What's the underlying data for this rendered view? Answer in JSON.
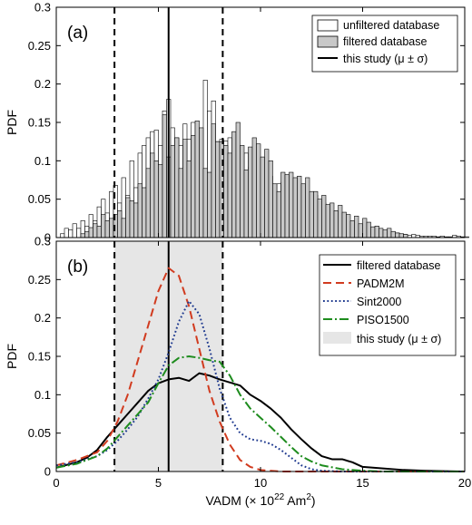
{
  "figure": {
    "xlabel_main": "VADM (× 10",
    "xlabel_exp": "22",
    "xlabel_unit": " Am",
    "xlabel_unit_exp": "2",
    "xlabel_close": ")"
  },
  "chart_data": [
    {
      "type": "bar",
      "panel_label": "(a)",
      "ylabel": "PDF",
      "xlim": [
        0,
        20
      ],
      "ylim": [
        0,
        0.3
      ],
      "x_ticks": [
        "0",
        "5",
        "10",
        "15",
        "20"
      ],
      "y_ticks": [
        "0",
        "0.05",
        "0.1",
        "0.15",
        "0.2",
        "0.25",
        "0.3"
      ],
      "bin_width": 0.2,
      "legend_position": "top-right",
      "legend": [
        "unfiltered database",
        "filtered database",
        "this study (μ ± σ)"
      ],
      "mean": 5.5,
      "sigma_low": 2.85,
      "sigma_high": 8.15,
      "series": [
        {
          "name": "unfiltered database",
          "color": "#ffffff",
          "x_start": 0.2,
          "values": [
            0.005,
            0.012,
            0.01,
            0.018,
            0.012,
            0.022,
            0.015,
            0.03,
            0.022,
            0.04,
            0.05,
            0.032,
            0.06,
            0.068,
            0.045,
            0.078,
            0.055,
            0.1,
            0.065,
            0.11,
            0.12,
            0.13,
            0.138,
            0.14,
            0.12,
            0.165,
            0.18,
            0.143,
            0.13,
            0.12,
            0.148,
            0.128,
            0.15,
            0.133,
            0.12,
            0.205,
            0.165,
            0.178,
            0.125,
            0.128,
            0.126,
            0.13,
            0.105,
            0.098,
            0.09,
            0.11,
            0.092,
            0.11,
            0.095,
            0.088,
            0.092,
            0.08,
            0.068,
            0.07,
            0.072,
            0.065,
            0.058,
            0.07,
            0.045,
            0.04,
            0.042,
            0.045,
            0.055,
            0.035,
            0.045,
            0.028,
            0.022,
            0.032,
            0.026,
            0.02,
            0.018,
            0.014,
            0.012,
            0.014,
            0.01,
            0.012,
            0.008,
            0.012,
            0.006,
            0.008,
            0.005,
            0.004,
            0.006,
            0.005,
            0.004,
            0.003,
            0.004,
            0.003,
            0.002,
            0.002,
            0.002,
            0.002,
            0.001,
            0.002,
            0.001,
            0.001,
            0.003,
            0.002,
            0.001,
            0.001
          ]
        },
        {
          "name": "filtered database",
          "color": "#c8c8c8",
          "x_start": 1.2,
          "values": [
            0.005,
            0.008,
            0.013,
            0.018,
            0.015,
            0.03,
            0.022,
            0.025,
            0.03,
            0.035,
            0.025,
            0.052,
            0.048,
            0.045,
            0.07,
            0.065,
            0.09,
            0.11,
            0.1,
            0.095,
            0.16,
            0.105,
            0.12,
            0.13,
            0.09,
            0.128,
            0.1,
            0.133,
            0.152,
            0.143,
            0.09,
            0.085,
            0.148,
            0.125,
            0.125,
            0.12,
            0.11,
            0.138,
            0.15,
            0.12,
            0.088,
            0.118,
            0.13,
            0.122,
            0.105,
            0.115,
            0.1,
            0.07,
            0.06,
            0.085,
            0.082,
            0.085,
            0.078,
            0.08,
            0.07,
            0.078,
            0.06,
            0.06,
            0.05,
            0.055,
            0.043,
            0.045,
            0.035,
            0.042,
            0.033,
            0.03,
            0.022,
            0.028,
            0.018,
            0.025,
            0.02,
            0.014,
            0.015,
            0.012,
            0.01,
            0.012,
            0.008,
            0.006,
            0.005,
            0.004
          ]
        }
      ]
    },
    {
      "type": "line",
      "panel_label": "(b)",
      "ylabel": "PDF",
      "xlim": [
        0,
        20
      ],
      "ylim": [
        0,
        0.3
      ],
      "x_ticks": [
        "0",
        "5",
        "10",
        "15",
        "20"
      ],
      "y_ticks": [
        "0",
        "0.05",
        "0.1",
        "0.15",
        "0.2",
        "0.25",
        "0.3"
      ],
      "legend_position": "top-right",
      "legend": [
        "filtered database",
        "PADM2M",
        "Sint2000",
        "PISO1500",
        "this study (μ ± σ)"
      ],
      "mean": 5.5,
      "sigma_low": 2.85,
      "sigma_high": 8.15,
      "band_color": "#e6e6e6",
      "series": [
        {
          "name": "filtered database",
          "color": "#000000",
          "dash": "none",
          "x": [
            0,
            1,
            1.5,
            2,
            2.5,
            3,
            3.5,
            4,
            4.5,
            5,
            5.5,
            6,
            6.5,
            7,
            7.5,
            8,
            8.5,
            9,
            9.5,
            10,
            10.5,
            11,
            11.5,
            12,
            12.5,
            13,
            13.5,
            14,
            14.5,
            15,
            16,
            17,
            18,
            19,
            20
          ],
          "y": [
            0.005,
            0.012,
            0.018,
            0.028,
            0.045,
            0.06,
            0.075,
            0.09,
            0.105,
            0.115,
            0.12,
            0.122,
            0.118,
            0.128,
            0.125,
            0.12,
            0.116,
            0.112,
            0.1,
            0.092,
            0.082,
            0.07,
            0.055,
            0.042,
            0.03,
            0.02,
            0.016,
            0.016,
            0.012,
            0.006,
            0.004,
            0.002,
            0.001,
            0.0005,
            0
          ]
        },
        {
          "name": "PADM2M",
          "color": "#d13b1f",
          "dash": "9,5",
          "x": [
            0,
            1,
            2,
            2.5,
            3,
            3.5,
            4,
            4.5,
            5,
            5.5,
            6,
            6.5,
            7,
            7.5,
            8,
            8.5,
            9,
            9.5,
            10,
            11,
            12,
            13,
            15,
            20
          ],
          "y": [
            0.008,
            0.015,
            0.025,
            0.04,
            0.065,
            0.1,
            0.145,
            0.19,
            0.235,
            0.265,
            0.255,
            0.215,
            0.16,
            0.105,
            0.065,
            0.035,
            0.015,
            0.006,
            0.002,
            0,
            0,
            0,
            0,
            0
          ]
        },
        {
          "name": "Sint2000",
          "color": "#1f3a8f",
          "dash": "1.8,2.6",
          "x": [
            0,
            1,
            2,
            2.5,
            3,
            3.5,
            4,
            4.5,
            5,
            5.5,
            6,
            6.5,
            7,
            7.5,
            8,
            8.5,
            9,
            9.5,
            10,
            10.5,
            11,
            11.5,
            12,
            12.5,
            13,
            14,
            15,
            20
          ],
          "y": [
            0.008,
            0.012,
            0.02,
            0.028,
            0.04,
            0.055,
            0.072,
            0.095,
            0.12,
            0.155,
            0.195,
            0.222,
            0.205,
            0.16,
            0.108,
            0.07,
            0.05,
            0.042,
            0.04,
            0.036,
            0.028,
            0.018,
            0.008,
            0.003,
            0.001,
            0,
            0,
            0
          ]
        },
        {
          "name": "PISO1500",
          "color": "#1e8c1e",
          "dash": "10,3,2,3",
          "x": [
            0,
            1,
            2,
            2.5,
            3,
            3.5,
            4,
            4.5,
            5,
            5.5,
            6,
            6.5,
            7,
            7.5,
            8,
            8.5,
            9,
            9.5,
            10,
            10.5,
            11,
            11.5,
            12,
            12.5,
            13,
            14,
            15,
            16,
            20
          ],
          "y": [
            0.005,
            0.01,
            0.02,
            0.03,
            0.045,
            0.06,
            0.075,
            0.09,
            0.115,
            0.138,
            0.148,
            0.15,
            0.148,
            0.145,
            0.143,
            0.125,
            0.1,
            0.082,
            0.07,
            0.058,
            0.045,
            0.032,
            0.02,
            0.013,
            0.008,
            0.003,
            0.001,
            0,
            0
          ]
        }
      ]
    }
  ]
}
